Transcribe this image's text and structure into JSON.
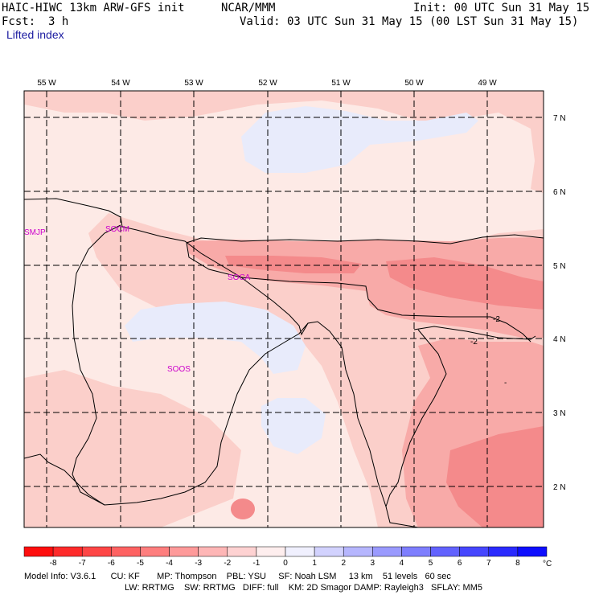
{
  "header": {
    "model": "HAIC-HIWC 13km ARW-GFS init",
    "org": "NCAR/MMM",
    "init": "Init: 00 UTC Sun 31 May 15",
    "fcst_label": "Fcst:",
    "fcst_value": "3 h",
    "valid": "Valid: 03 UTC Sun 31 May 15 (00 LST Sun 31 May 15)",
    "field": "Lifted index"
  },
  "map": {
    "lon_labels": [
      "55 W",
      "54 W",
      "53 W",
      "52 W",
      "51 W",
      "50 W",
      "49 W"
    ],
    "lat_labels": [
      "7 N",
      "6 N",
      "5 N",
      "4 N",
      "3 N",
      "2 N"
    ],
    "stations": [
      "SMJP",
      "SOCM",
      "SOCA",
      "SOOS"
    ],
    "contour_labels": [
      "-2",
      "-2",
      "-"
    ],
    "colors": {
      "light": "#fdeae6",
      "med": "#fbcfca",
      "dark": "#f8aaa8",
      "darker": "#f48a8b",
      "blue": "#e8ebfb",
      "line": "#000000",
      "station": "#cc00cc"
    }
  },
  "colorbar": {
    "ticks": [
      "-8",
      "-7",
      "-6",
      "-5",
      "-4",
      "-3",
      "-2",
      "-1",
      "0",
      "1",
      "2",
      "3",
      "4",
      "5",
      "6",
      "7",
      "8"
    ],
    "unit": "°C",
    "colors": [
      "#fe0e0e",
      "#fe2a2a",
      "#fe4646",
      "#fe6262",
      "#fe7e7e",
      "#fe9a9a",
      "#feb6b6",
      "#fed2d2",
      "#feeeee",
      "#f0f0fe",
      "#d2d2fe",
      "#b6b6fe",
      "#9a9afe",
      "#7e7efe",
      "#6262fe",
      "#4646fe",
      "#2a2afe",
      "#0e0efe"
    ]
  },
  "footer": {
    "line1": "Model Info: V3.6.1      CU: KF       MP: Thompson    PBL: YSU     SF: Noah LSM     13 km    51 levels   60 sec",
    "line2": "LW: RRTMG    SW: RRTMG   DIFF: full    KM: 2D Smagor DAMP: Rayleigh3   SFLAY: MM5"
  }
}
